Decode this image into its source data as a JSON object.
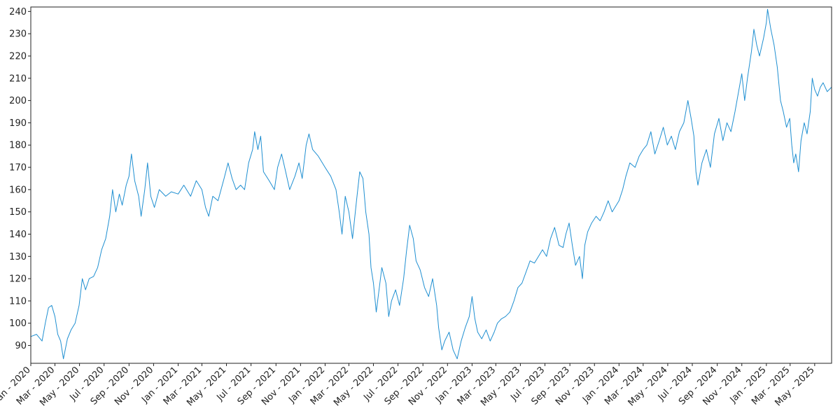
{
  "chart_data": {
    "type": "line",
    "title": "",
    "xlabel": "",
    "ylabel": "",
    "grid": false,
    "legend": "none",
    "xlim": [
      "2020-01-01",
      "2025-06-12"
    ],
    "ylim": [
      82,
      242
    ],
    "y_ticks": [
      90,
      100,
      110,
      120,
      130,
      140,
      150,
      160,
      170,
      180,
      190,
      200,
      210,
      220,
      230,
      240
    ],
    "x_ticks": [
      {
        "date": "2020-01-01",
        "label": "Jan - 2020"
      },
      {
        "date": "2020-03-01",
        "label": "Mar - 2020"
      },
      {
        "date": "2020-05-01",
        "label": "May - 2020"
      },
      {
        "date": "2020-07-01",
        "label": "Jul - 2020"
      },
      {
        "date": "2020-09-01",
        "label": "Sep - 2020"
      },
      {
        "date": "2020-11-01",
        "label": "Nov - 2020"
      },
      {
        "date": "2021-01-01",
        "label": "Jan - 2021"
      },
      {
        "date": "2021-03-01",
        "label": "Mar - 2021"
      },
      {
        "date": "2021-05-01",
        "label": "May - 2021"
      },
      {
        "date": "2021-07-01",
        "label": "Jul - 2021"
      },
      {
        "date": "2021-09-01",
        "label": "Sep - 2021"
      },
      {
        "date": "2021-11-01",
        "label": "Nov - 2021"
      },
      {
        "date": "2022-01-01",
        "label": "Jan - 2022"
      },
      {
        "date": "2022-03-01",
        "label": "Mar - 2022"
      },
      {
        "date": "2022-05-01",
        "label": "May - 2022"
      },
      {
        "date": "2022-07-01",
        "label": "Jul - 2022"
      },
      {
        "date": "2022-09-01",
        "label": "Sep - 2022"
      },
      {
        "date": "2022-11-01",
        "label": "Nov - 2022"
      },
      {
        "date": "2023-01-01",
        "label": "Jan - 2023"
      },
      {
        "date": "2023-03-01",
        "label": "Mar - 2023"
      },
      {
        "date": "2023-05-01",
        "label": "May - 2023"
      },
      {
        "date": "2023-07-01",
        "label": "Jul - 2023"
      },
      {
        "date": "2023-09-01",
        "label": "Sep - 2023"
      },
      {
        "date": "2023-11-01",
        "label": "Nov - 2023"
      },
      {
        "date": "2024-01-01",
        "label": "Jan - 2024"
      },
      {
        "date": "2024-03-01",
        "label": "Mar - 2024"
      },
      {
        "date": "2024-05-01",
        "label": "May - 2024"
      },
      {
        "date": "2024-07-01",
        "label": "Jul - 2024"
      },
      {
        "date": "2024-09-01",
        "label": "Sep - 2024"
      },
      {
        "date": "2024-11-01",
        "label": "Nov - 2024"
      },
      {
        "date": "2025-01-01",
        "label": "Jan - 2025"
      },
      {
        "date": "2025-03-01",
        "label": "Mar - 2025"
      },
      {
        "date": "2025-05-01",
        "label": "May - 2025"
      }
    ],
    "series": [
      {
        "color": "#1f8fd1",
        "points": [
          [
            "2020-01-01",
            94
          ],
          [
            "2020-01-15",
            95
          ],
          [
            "2020-01-29",
            92
          ],
          [
            "2020-02-06",
            100
          ],
          [
            "2020-02-14",
            107
          ],
          [
            "2020-02-22",
            108
          ],
          [
            "2020-03-01",
            103
          ],
          [
            "2020-03-08",
            95
          ],
          [
            "2020-03-15",
            92
          ],
          [
            "2020-03-22",
            84
          ],
          [
            "2020-04-01",
            93
          ],
          [
            "2020-04-10",
            97
          ],
          [
            "2020-04-20",
            100
          ],
          [
            "2020-04-30",
            108
          ],
          [
            "2020-05-08",
            120
          ],
          [
            "2020-05-16",
            115
          ],
          [
            "2020-05-25",
            120
          ],
          [
            "2020-06-05",
            121
          ],
          [
            "2020-06-15",
            125
          ],
          [
            "2020-06-25",
            133
          ],
          [
            "2020-07-05",
            138
          ],
          [
            "2020-07-15",
            148
          ],
          [
            "2020-07-22",
            160
          ],
          [
            "2020-07-30",
            150
          ],
          [
            "2020-08-08",
            158
          ],
          [
            "2020-08-15",
            153
          ],
          [
            "2020-08-25",
            162
          ],
          [
            "2020-09-01",
            166
          ],
          [
            "2020-09-07",
            176
          ],
          [
            "2020-09-15",
            164
          ],
          [
            "2020-09-25",
            157
          ],
          [
            "2020-10-01",
            148
          ],
          [
            "2020-10-10",
            160
          ],
          [
            "2020-10-17",
            172
          ],
          [
            "2020-10-25",
            157
          ],
          [
            "2020-11-03",
            152
          ],
          [
            "2020-11-15",
            160
          ],
          [
            "2020-12-01",
            157
          ],
          [
            "2020-12-15",
            159
          ],
          [
            "2021-01-01",
            158
          ],
          [
            "2021-01-15",
            162
          ],
          [
            "2021-02-01",
            157
          ],
          [
            "2021-02-15",
            164
          ],
          [
            "2021-03-01",
            160
          ],
          [
            "2021-03-10",
            152
          ],
          [
            "2021-03-18",
            148
          ],
          [
            "2021-03-28",
            157
          ],
          [
            "2021-04-10",
            155
          ],
          [
            "2021-04-25",
            165
          ],
          [
            "2021-05-05",
            172
          ],
          [
            "2021-05-15",
            165
          ],
          [
            "2021-05-25",
            160
          ],
          [
            "2021-06-05",
            162
          ],
          [
            "2021-06-15",
            160
          ],
          [
            "2021-06-25",
            172
          ],
          [
            "2021-07-05",
            178
          ],
          [
            "2021-07-10",
            186
          ],
          [
            "2021-07-18",
            178
          ],
          [
            "2021-07-25",
            184
          ],
          [
            "2021-08-01",
            168
          ],
          [
            "2021-08-15",
            164
          ],
          [
            "2021-08-28",
            160
          ],
          [
            "2021-09-05",
            170
          ],
          [
            "2021-09-15",
            176
          ],
          [
            "2021-09-25",
            168
          ],
          [
            "2021-10-05",
            160
          ],
          [
            "2021-10-18",
            166
          ],
          [
            "2021-10-28",
            172
          ],
          [
            "2021-11-05",
            165
          ],
          [
            "2021-11-15",
            180
          ],
          [
            "2021-11-22",
            185
          ],
          [
            "2021-12-01",
            178
          ],
          [
            "2021-12-15",
            175
          ],
          [
            "2022-01-01",
            170
          ],
          [
            "2022-01-15",
            166
          ],
          [
            "2022-01-28",
            160
          ],
          [
            "2022-02-05",
            150
          ],
          [
            "2022-02-12",
            140
          ],
          [
            "2022-02-20",
            157
          ],
          [
            "2022-03-01",
            150
          ],
          [
            "2022-03-10",
            138
          ],
          [
            "2022-03-20",
            155
          ],
          [
            "2022-03-28",
            168
          ],
          [
            "2022-04-05",
            165
          ],
          [
            "2022-04-12",
            150
          ],
          [
            "2022-04-20",
            140
          ],
          [
            "2022-04-25",
            125
          ],
          [
            "2022-05-01",
            118
          ],
          [
            "2022-05-08",
            105
          ],
          [
            "2022-05-15",
            115
          ],
          [
            "2022-05-22",
            125
          ],
          [
            "2022-06-01",
            118
          ],
          [
            "2022-06-08",
            103
          ],
          [
            "2022-06-15",
            110
          ],
          [
            "2022-06-25",
            115
          ],
          [
            "2022-07-05",
            108
          ],
          [
            "2022-07-15",
            120
          ],
          [
            "2022-07-22",
            132
          ],
          [
            "2022-07-30",
            144
          ],
          [
            "2022-08-08",
            138
          ],
          [
            "2022-08-15",
            128
          ],
          [
            "2022-08-25",
            124
          ],
          [
            "2022-09-05",
            116
          ],
          [
            "2022-09-15",
            112
          ],
          [
            "2022-09-25",
            120
          ],
          [
            "2022-10-05",
            108
          ],
          [
            "2022-10-10",
            98
          ],
          [
            "2022-10-18",
            88
          ],
          [
            "2022-10-25",
            92
          ],
          [
            "2022-11-05",
            96
          ],
          [
            "2022-11-15",
            88
          ],
          [
            "2022-11-25",
            84
          ],
          [
            "2022-12-05",
            92
          ],
          [
            "2022-12-15",
            98
          ],
          [
            "2022-12-25",
            103
          ],
          [
            "2023-01-01",
            112
          ],
          [
            "2023-01-08",
            102
          ],
          [
            "2023-01-15",
            96
          ],
          [
            "2023-01-25",
            93
          ],
          [
            "2023-02-05",
            97
          ],
          [
            "2023-02-15",
            92
          ],
          [
            "2023-02-25",
            96
          ],
          [
            "2023-03-05",
            100
          ],
          [
            "2023-03-15",
            102
          ],
          [
            "2023-03-25",
            103
          ],
          [
            "2023-04-05",
            105
          ],
          [
            "2023-04-15",
            110
          ],
          [
            "2023-04-25",
            116
          ],
          [
            "2023-05-05",
            118
          ],
          [
            "2023-05-15",
            123
          ],
          [
            "2023-05-25",
            128
          ],
          [
            "2023-06-05",
            127
          ],
          [
            "2023-06-15",
            130
          ],
          [
            "2023-06-25",
            133
          ],
          [
            "2023-07-05",
            130
          ],
          [
            "2023-07-15",
            138
          ],
          [
            "2023-07-25",
            143
          ],
          [
            "2023-08-05",
            135
          ],
          [
            "2023-08-15",
            134
          ],
          [
            "2023-08-22",
            140
          ],
          [
            "2023-08-30",
            145
          ],
          [
            "2023-09-07",
            135
          ],
          [
            "2023-09-15",
            126
          ],
          [
            "2023-09-25",
            130
          ],
          [
            "2023-10-02",
            120
          ],
          [
            "2023-10-08",
            135
          ],
          [
            "2023-10-15",
            141
          ],
          [
            "2023-10-25",
            145
          ],
          [
            "2023-11-05",
            148
          ],
          [
            "2023-11-15",
            146
          ],
          [
            "2023-11-25",
            150
          ],
          [
            "2023-12-05",
            155
          ],
          [
            "2023-12-15",
            150
          ],
          [
            "2024-01-01",
            155
          ],
          [
            "2024-01-10",
            160
          ],
          [
            "2024-01-18",
            166
          ],
          [
            "2024-01-28",
            172
          ],
          [
            "2024-02-10",
            170
          ],
          [
            "2024-02-20",
            175
          ],
          [
            "2024-03-01",
            178
          ],
          [
            "2024-03-10",
            180
          ],
          [
            "2024-03-20",
            186
          ],
          [
            "2024-03-30",
            176
          ],
          [
            "2024-04-10",
            182
          ],
          [
            "2024-04-20",
            188
          ],
          [
            "2024-04-30",
            180
          ],
          [
            "2024-05-10",
            184
          ],
          [
            "2024-05-20",
            178
          ],
          [
            "2024-05-30",
            186
          ],
          [
            "2024-06-10",
            190
          ],
          [
            "2024-06-20",
            200
          ],
          [
            "2024-06-28",
            192
          ],
          [
            "2024-07-05",
            184
          ],
          [
            "2024-07-10",
            168
          ],
          [
            "2024-07-15",
            162
          ],
          [
            "2024-07-25",
            172
          ],
          [
            "2024-08-05",
            178
          ],
          [
            "2024-08-15",
            170
          ],
          [
            "2024-08-25",
            185
          ],
          [
            "2024-09-05",
            192
          ],
          [
            "2024-09-15",
            182
          ],
          [
            "2024-09-25",
            190
          ],
          [
            "2024-10-05",
            186
          ],
          [
            "2024-10-15",
            195
          ],
          [
            "2024-10-25",
            205
          ],
          [
            "2024-11-01",
            212
          ],
          [
            "2024-11-08",
            200
          ],
          [
            "2024-11-15",
            210
          ],
          [
            "2024-11-25",
            222
          ],
          [
            "2024-12-01",
            232
          ],
          [
            "2024-12-08",
            225
          ],
          [
            "2024-12-15",
            220
          ],
          [
            "2024-12-25",
            228
          ],
          [
            "2025-01-01",
            235
          ],
          [
            "2025-01-04",
            241
          ],
          [
            "2025-01-12",
            232
          ],
          [
            "2025-01-20",
            225
          ],
          [
            "2025-01-28",
            215
          ],
          [
            "2025-02-05",
            200
          ],
          [
            "2025-02-12",
            195
          ],
          [
            "2025-02-20",
            188
          ],
          [
            "2025-02-28",
            192
          ],
          [
            "2025-03-05",
            180
          ],
          [
            "2025-03-10",
            172
          ],
          [
            "2025-03-15",
            176
          ],
          [
            "2025-03-22",
            168
          ],
          [
            "2025-03-28",
            182
          ],
          [
            "2025-04-05",
            190
          ],
          [
            "2025-04-12",
            185
          ],
          [
            "2025-04-20",
            195
          ],
          [
            "2025-04-25",
            210
          ],
          [
            "2025-05-01",
            205
          ],
          [
            "2025-05-08",
            202
          ],
          [
            "2025-05-15",
            206
          ],
          [
            "2025-05-22",
            208
          ],
          [
            "2025-06-01",
            204
          ],
          [
            "2025-06-12",
            206
          ]
        ]
      }
    ]
  }
}
